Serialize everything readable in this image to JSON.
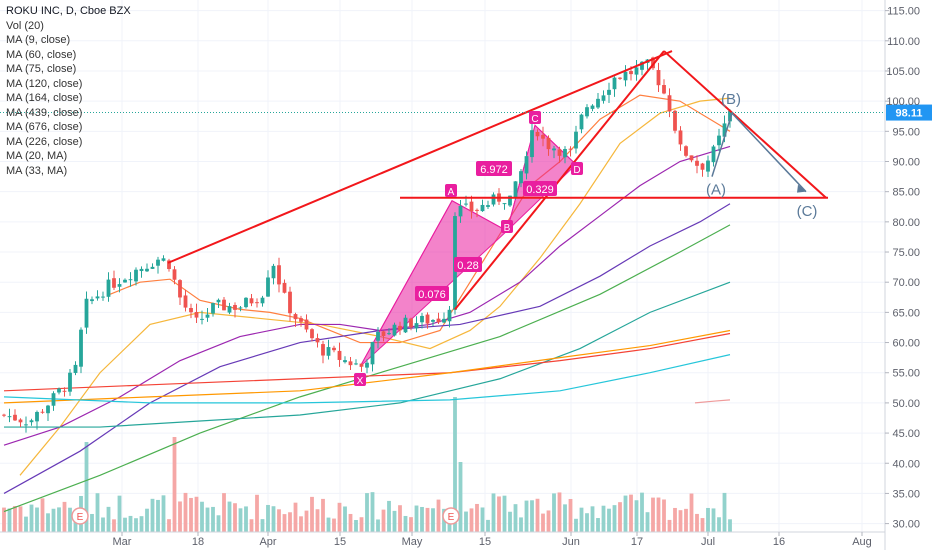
{
  "legend": {
    "title": "ROKU INC, D, Cboe BZX",
    "indicators": [
      "Vol (20)",
      "MA (9, close)",
      "MA (60, close)",
      "MA (75, close)",
      "MA (120, close)",
      "MA (164, close)",
      "MA (439, close)",
      "MA (676, close)",
      "MA (226, close)",
      "MA (20, MA)",
      "MA (33, MA)"
    ]
  },
  "last_price_label": "98.11",
  "colors": {
    "up": "#26a69a",
    "down": "#ef5350",
    "pattern": "#e91e9f",
    "trend": "#f2171b",
    "wave": "#5b7a99",
    "last_price": "#2196f3",
    "vol_up": "#92d2cc",
    "vol_down": "#f5a7a6"
  },
  "chart_data": {
    "type": "candlestick",
    "title": "ROKU INC, D, Cboe BZX",
    "ylim": [
      30,
      117
    ],
    "y_ticks": [
      "115.00",
      "110.00",
      "105.00",
      "100.00",
      "95.00",
      "90.00",
      "85.00",
      "80.00",
      "75.00",
      "70.00",
      "65.00",
      "60.00",
      "55.00",
      "50.00",
      "45.00",
      "40.00",
      "35.00",
      "30.00"
    ],
    "x_ticks": [
      "Mar",
      "18",
      "Apr",
      "15",
      "May",
      "15",
      "Jun",
      "17",
      "Jul",
      "16",
      "Aug"
    ],
    "last_price": 98.11,
    "pattern_points": [
      {
        "label": "X",
        "price": 56.0
      },
      {
        "label": "A",
        "price": 83.5
      },
      {
        "label": "B",
        "price": 78.5
      },
      {
        "label": "C",
        "price": 96.0
      },
      {
        "label": "D",
        "price": 89.5
      }
    ],
    "ratios": [
      "0.076",
      "0.28",
      "6.972",
      "0.329"
    ],
    "wave_labels": [
      "(A)",
      "(B)",
      "(C)"
    ],
    "horizontal_level": 84.0,
    "events": [
      "E",
      "E"
    ]
  }
}
